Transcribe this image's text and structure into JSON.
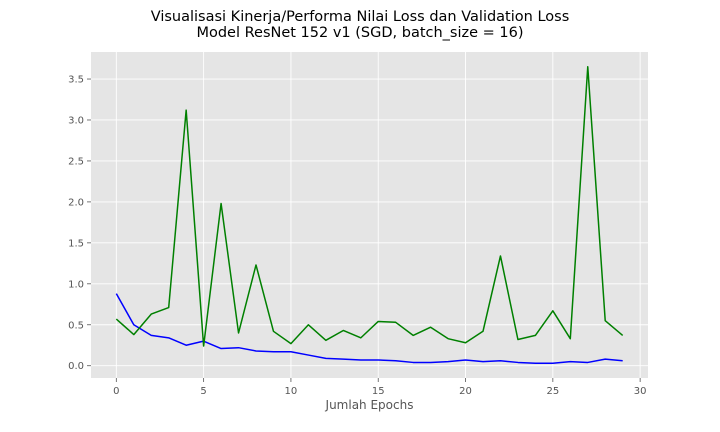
{
  "chart_data": {
    "type": "line",
    "title": [
      "Visualisasi Kinerja/Performa Nilai Loss dan Validation Loss",
      "Model ResNet 152 v1 (SGD, batch_size = 16)"
    ],
    "xlabel": "Jumlah Epochs",
    "ylabel": "",
    "xlim": [
      -1.45,
      30.45
    ],
    "ylim": [
      -0.15,
      3.83
    ],
    "xticks": [
      0,
      5,
      10,
      15,
      20,
      25,
      30
    ],
    "xtick_labels": [
      "0",
      "5",
      "10",
      "15",
      "20",
      "25",
      "30"
    ],
    "yticks": [
      0.0,
      0.5,
      1.0,
      1.5,
      2.0,
      2.5,
      3.0,
      3.5
    ],
    "ytick_labels": [
      "0.0",
      "0.5",
      "1.0",
      "1.5",
      "2.0",
      "2.5",
      "3.0",
      "3.5"
    ],
    "grid": true,
    "background": "#e5e5e5",
    "x": [
      0,
      1,
      2,
      3,
      4,
      5,
      6,
      7,
      8,
      9,
      10,
      11,
      12,
      13,
      14,
      15,
      16,
      17,
      18,
      19,
      20,
      21,
      22,
      23,
      24,
      25,
      26,
      27,
      28,
      29
    ],
    "series": [
      {
        "color": "#0000ff",
        "values": [
          0.88,
          0.5,
          0.37,
          0.34,
          0.25,
          0.3,
          0.21,
          0.22,
          0.18,
          0.17,
          0.17,
          0.13,
          0.09,
          0.08,
          0.07,
          0.07,
          0.06,
          0.04,
          0.04,
          0.05,
          0.07,
          0.05,
          0.06,
          0.04,
          0.03,
          0.03,
          0.05,
          0.04,
          0.08,
          0.06
        ]
      },
      {
        "color": "#008000",
        "values": [
          0.57,
          0.38,
          0.63,
          0.71,
          3.12,
          0.24,
          1.98,
          0.4,
          1.23,
          0.42,
          0.27,
          0.5,
          0.31,
          0.43,
          0.34,
          0.54,
          0.53,
          0.37,
          0.47,
          0.33,
          0.28,
          0.42,
          1.34,
          0.32,
          0.37,
          0.67,
          0.33,
          3.65,
          0.55,
          0.37
        ]
      }
    ]
  }
}
